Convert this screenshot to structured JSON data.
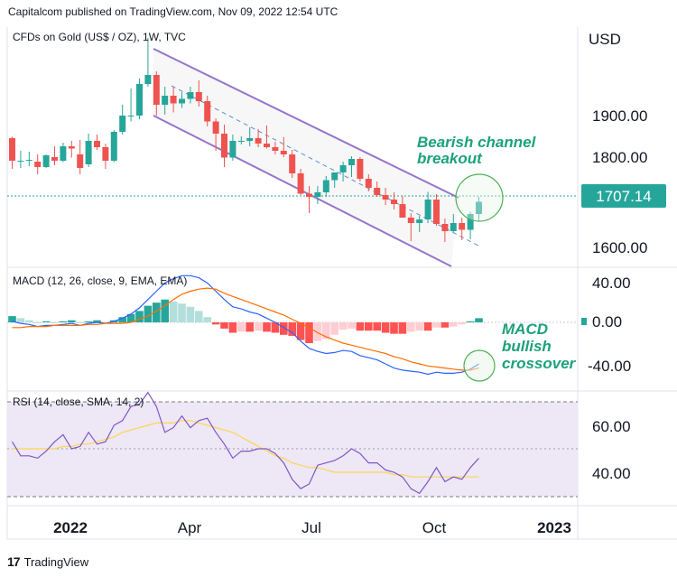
{
  "header": {
    "publisher": "Capitalcom published on TradingView.com, Nov 09, 2022 12:54 UTC"
  },
  "footer": {
    "brand": "TradingView"
  },
  "chart_data": [
    {
      "type": "candlestick",
      "title": "CFDs on Gold (US$ / OZ), 1W, TVC",
      "currency": "USD",
      "y_ticks": [
        "1900.00",
        "1800.00",
        "1600.00"
      ],
      "last_price": "1707.14",
      "annotation": "Bearish channel breakout",
      "annotation_lines": [
        "Bearish channel",
        "breakout"
      ],
      "colors": {
        "up": "#26a69a",
        "down": "#ef5350",
        "channel": "#9575cd",
        "annotation": "#1ba27a"
      },
      "candles": [
        {
          "o": 1848,
          "h": 1851,
          "l": 1780,
          "c": 1798
        },
        {
          "o": 1798,
          "h": 1820,
          "l": 1782,
          "c": 1798
        },
        {
          "o": 1798,
          "h": 1818,
          "l": 1786,
          "c": 1800
        },
        {
          "o": 1796,
          "h": 1812,
          "l": 1768,
          "c": 1784
        },
        {
          "o": 1784,
          "h": 1812,
          "l": 1782,
          "c": 1810
        },
        {
          "o": 1806,
          "h": 1830,
          "l": 1788,
          "c": 1798
        },
        {
          "o": 1798,
          "h": 1838,
          "l": 1795,
          "c": 1830
        },
        {
          "o": 1830,
          "h": 1842,
          "l": 1805,
          "c": 1825
        },
        {
          "o": 1812,
          "h": 1844,
          "l": 1768,
          "c": 1782
        },
        {
          "o": 1790,
          "h": 1858,
          "l": 1784,
          "c": 1842
        },
        {
          "o": 1842,
          "h": 1856,
          "l": 1822,
          "c": 1828
        },
        {
          "o": 1828,
          "h": 1836,
          "l": 1780,
          "c": 1798
        },
        {
          "o": 1798,
          "h": 1866,
          "l": 1795,
          "c": 1862
        },
        {
          "o": 1862,
          "h": 1922,
          "l": 1856,
          "c": 1898
        },
        {
          "o": 1898,
          "h": 1958,
          "l": 1885,
          "c": 1898
        },
        {
          "o": 1898,
          "h": 1980,
          "l": 1890,
          "c": 1968
        },
        {
          "o": 1968,
          "h": 2070,
          "l": 1962,
          "c": 1988
        },
        {
          "o": 1988,
          "h": 1996,
          "l": 1898,
          "c": 1922
        },
        {
          "o": 1922,
          "h": 1962,
          "l": 1900,
          "c": 1942
        },
        {
          "o": 1942,
          "h": 1962,
          "l": 1905,
          "c": 1925
        },
        {
          "o": 1925,
          "h": 1950,
          "l": 1915,
          "c": 1935
        },
        {
          "o": 1935,
          "h": 1962,
          "l": 1925,
          "c": 1950
        },
        {
          "o": 1950,
          "h": 1976,
          "l": 1918,
          "c": 1930
        },
        {
          "o": 1930,
          "h": 1942,
          "l": 1874,
          "c": 1885
        },
        {
          "o": 1885,
          "h": 1892,
          "l": 1820,
          "c": 1858
        },
        {
          "o": 1858,
          "h": 1878,
          "l": 1784,
          "c": 1805
        },
        {
          "o": 1805,
          "h": 1856,
          "l": 1798,
          "c": 1842
        },
        {
          "o": 1842,
          "h": 1852,
          "l": 1834,
          "c": 1842
        },
        {
          "o": 1842,
          "h": 1872,
          "l": 1830,
          "c": 1848
        },
        {
          "o": 1848,
          "h": 1868,
          "l": 1828,
          "c": 1836
        },
        {
          "o": 1836,
          "h": 1876,
          "l": 1825,
          "c": 1828
        },
        {
          "o": 1828,
          "h": 1840,
          "l": 1812,
          "c": 1820
        },
        {
          "o": 1820,
          "h": 1850,
          "l": 1806,
          "c": 1812
        },
        {
          "o": 1812,
          "h": 1822,
          "l": 1760,
          "c": 1770
        },
        {
          "o": 1770,
          "h": 1780,
          "l": 1722,
          "c": 1725
        },
        {
          "o": 1725,
          "h": 1742,
          "l": 1682,
          "c": 1718
        },
        {
          "o": 1718,
          "h": 1742,
          "l": 1702,
          "c": 1728
        },
        {
          "o": 1728,
          "h": 1764,
          "l": 1718,
          "c": 1755
        },
        {
          "o": 1755,
          "h": 1768,
          "l": 1738,
          "c": 1772
        },
        {
          "o": 1772,
          "h": 1796,
          "l": 1752,
          "c": 1788
        },
        {
          "o": 1788,
          "h": 1808,
          "l": 1762,
          "c": 1802
        },
        {
          "o": 1802,
          "h": 1806,
          "l": 1752,
          "c": 1758
        },
        {
          "o": 1758,
          "h": 1768,
          "l": 1730,
          "c": 1738
        },
        {
          "o": 1738,
          "h": 1752,
          "l": 1718,
          "c": 1722
        },
        {
          "o": 1722,
          "h": 1738,
          "l": 1700,
          "c": 1712
        },
        {
          "o": 1712,
          "h": 1728,
          "l": 1690,
          "c": 1702
        },
        {
          "o": 1702,
          "h": 1720,
          "l": 1672,
          "c": 1672
        },
        {
          "o": 1672,
          "h": 1682,
          "l": 1620,
          "c": 1660
        },
        {
          "o": 1660,
          "h": 1676,
          "l": 1640,
          "c": 1668
        },
        {
          "o": 1668,
          "h": 1729,
          "l": 1660,
          "c": 1712
        },
        {
          "o": 1712,
          "h": 1724,
          "l": 1654,
          "c": 1658
        },
        {
          "o": 1658,
          "h": 1670,
          "l": 1618,
          "c": 1642
        },
        {
          "o": 1642,
          "h": 1680,
          "l": 1640,
          "c": 1660
        },
        {
          "o": 1660,
          "h": 1672,
          "l": 1622,
          "c": 1645
        },
        {
          "o": 1645,
          "h": 1685,
          "l": 1624,
          "c": 1680
        },
        {
          "o": 1680,
          "h": 1718,
          "l": 1665,
          "c": 1707
        }
      ]
    },
    {
      "type": "line",
      "title": "MACD (12, 26, close, 9, EMA, EMA)",
      "y_ticks": [
        "40.00",
        "0.00",
        "-40.00"
      ],
      "annotation": "MACD bullish crossover",
      "annotation_lines": [
        "MACD",
        "bullish",
        "crossover"
      ],
      "colors": {
        "macd": "#2962ff",
        "signal": "#ff6d00",
        "hist_up": "#26a69a",
        "hist_up_fade": "#b2dfdb",
        "hist_down": "#ff5252",
        "hist_down_fade": "#ffcdd2"
      },
      "macd": [
        1,
        -1,
        -2,
        -4,
        -3,
        -3,
        -2,
        -1,
        -3,
        -1,
        0,
        -1,
        1,
        4,
        8,
        14,
        22,
        30,
        38,
        42,
        45,
        45,
        43,
        38,
        30,
        22,
        15,
        13,
        10,
        8,
        4,
        0,
        -5,
        -10,
        -18,
        -25,
        -28,
        -30,
        -29,
        -27,
        -28,
        -32,
        -34,
        -36,
        -40,
        -44,
        -46,
        -47,
        -48,
        -50,
        -48,
        -49,
        -49,
        -48,
        -45,
        -40
      ],
      "signal": [
        -5,
        -5,
        -4,
        -4,
        -4,
        -3,
        -3,
        -3,
        -3,
        -2,
        -2,
        -1,
        -1,
        -1,
        0,
        3,
        6,
        11,
        16,
        22,
        27,
        30,
        32,
        33,
        32,
        28,
        25,
        22,
        19,
        16,
        13,
        10,
        7,
        3,
        -1,
        -5,
        -10,
        -14,
        -17,
        -20,
        -22,
        -24,
        -26,
        -28,
        -30,
        -33,
        -35,
        -38,
        -40,
        -42,
        -43,
        -44,
        -45,
        -46,
        -46,
        -44
      ],
      "histogram": [
        6,
        4,
        2,
        0,
        1,
        0,
        1,
        2,
        0,
        1,
        2,
        0,
        2,
        5,
        8,
        11,
        16,
        19,
        22,
        20,
        18,
        15,
        11,
        5,
        -2,
        -6,
        -10,
        -9,
        -9,
        -8,
        -9,
        -10,
        -12,
        -13,
        -17,
        -20,
        -18,
        -16,
        -12,
        -7,
        -6,
        -8,
        -8,
        -8,
        -10,
        -11,
        -11,
        -9,
        -8,
        -8,
        -5,
        -5,
        -4,
        -2,
        1,
        4
      ]
    },
    {
      "type": "line",
      "title": "RSI (14, close, SMA, 14, 2)",
      "y_ticks": [
        "60.00",
        "40.00"
      ],
      "colors": {
        "rsi": "#7e57c2",
        "sma": "#ffd54f",
        "band": "#ede7f6"
      },
      "rsi": [
        53,
        47,
        47,
        46,
        49,
        53,
        56,
        50,
        51,
        57,
        52,
        53,
        60,
        62,
        68,
        69,
        74,
        68,
        57,
        59,
        64,
        59,
        62,
        63,
        57,
        52,
        46,
        49,
        49,
        50,
        50,
        48,
        44,
        37,
        33,
        35,
        43,
        44,
        45,
        47,
        50,
        48,
        44,
        44,
        41,
        40,
        38,
        33,
        31,
        36,
        42,
        36,
        38,
        37,
        42,
        46
      ],
      "rsi_sma": [
        50,
        50,
        50,
        50,
        50,
        50,
        51,
        51,
        52,
        52,
        53,
        54,
        55,
        57,
        58,
        59,
        60,
        61,
        61,
        61,
        62,
        62,
        61,
        60,
        59,
        58,
        57,
        55,
        53,
        51,
        49,
        47,
        46,
        44,
        43,
        42,
        42,
        41,
        40,
        40,
        40,
        40,
        40,
        40,
        40,
        39,
        39,
        38,
        38,
        38,
        38,
        38,
        38,
        38,
        38,
        38
      ]
    }
  ],
  "x_axis": {
    "labels": [
      "2022",
      "Apr",
      "Jul",
      "Oct",
      "2023"
    ],
    "bold": [
      "2022",
      "2023"
    ]
  }
}
